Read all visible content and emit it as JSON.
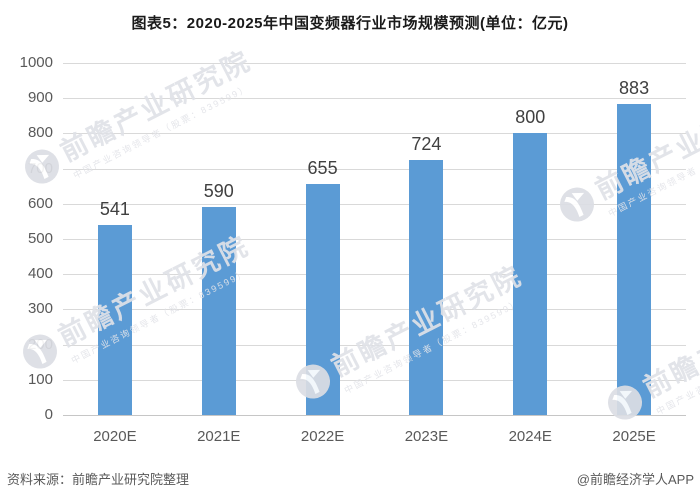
{
  "chart_data": {
    "type": "bar",
    "title": "图表5：2020-2025年中国变频器行业市场规模预测(单位：亿元)",
    "unit": "亿元",
    "categories": [
      "2020E",
      "2021E",
      "2022E",
      "2023E",
      "2024E",
      "2025E"
    ],
    "values": [
      541,
      590,
      655,
      724,
      800,
      883
    ],
    "xlabel": "",
    "ylabel": "",
    "ylim": [
      0,
      1000
    ],
    "ytick_step": 100,
    "yticks": [
      0,
      100,
      200,
      300,
      400,
      500,
      600,
      700,
      800,
      900,
      1000
    ],
    "grid": true,
    "legend": false,
    "bar_color": "#5b9bd5",
    "gridline_color": "#d9d9d9",
    "value_label_color": "#404040",
    "axis_label_color": "#595959"
  },
  "watermark": {
    "brand": "前瞻产业研究院",
    "tagline": "中国产业咨询领导者（股票：839599）",
    "logo": "qianzhan-logo"
  },
  "footer": {
    "source": "资料来源：前瞻产业研究院整理",
    "credit": "@前瞻经济学人APP"
  }
}
